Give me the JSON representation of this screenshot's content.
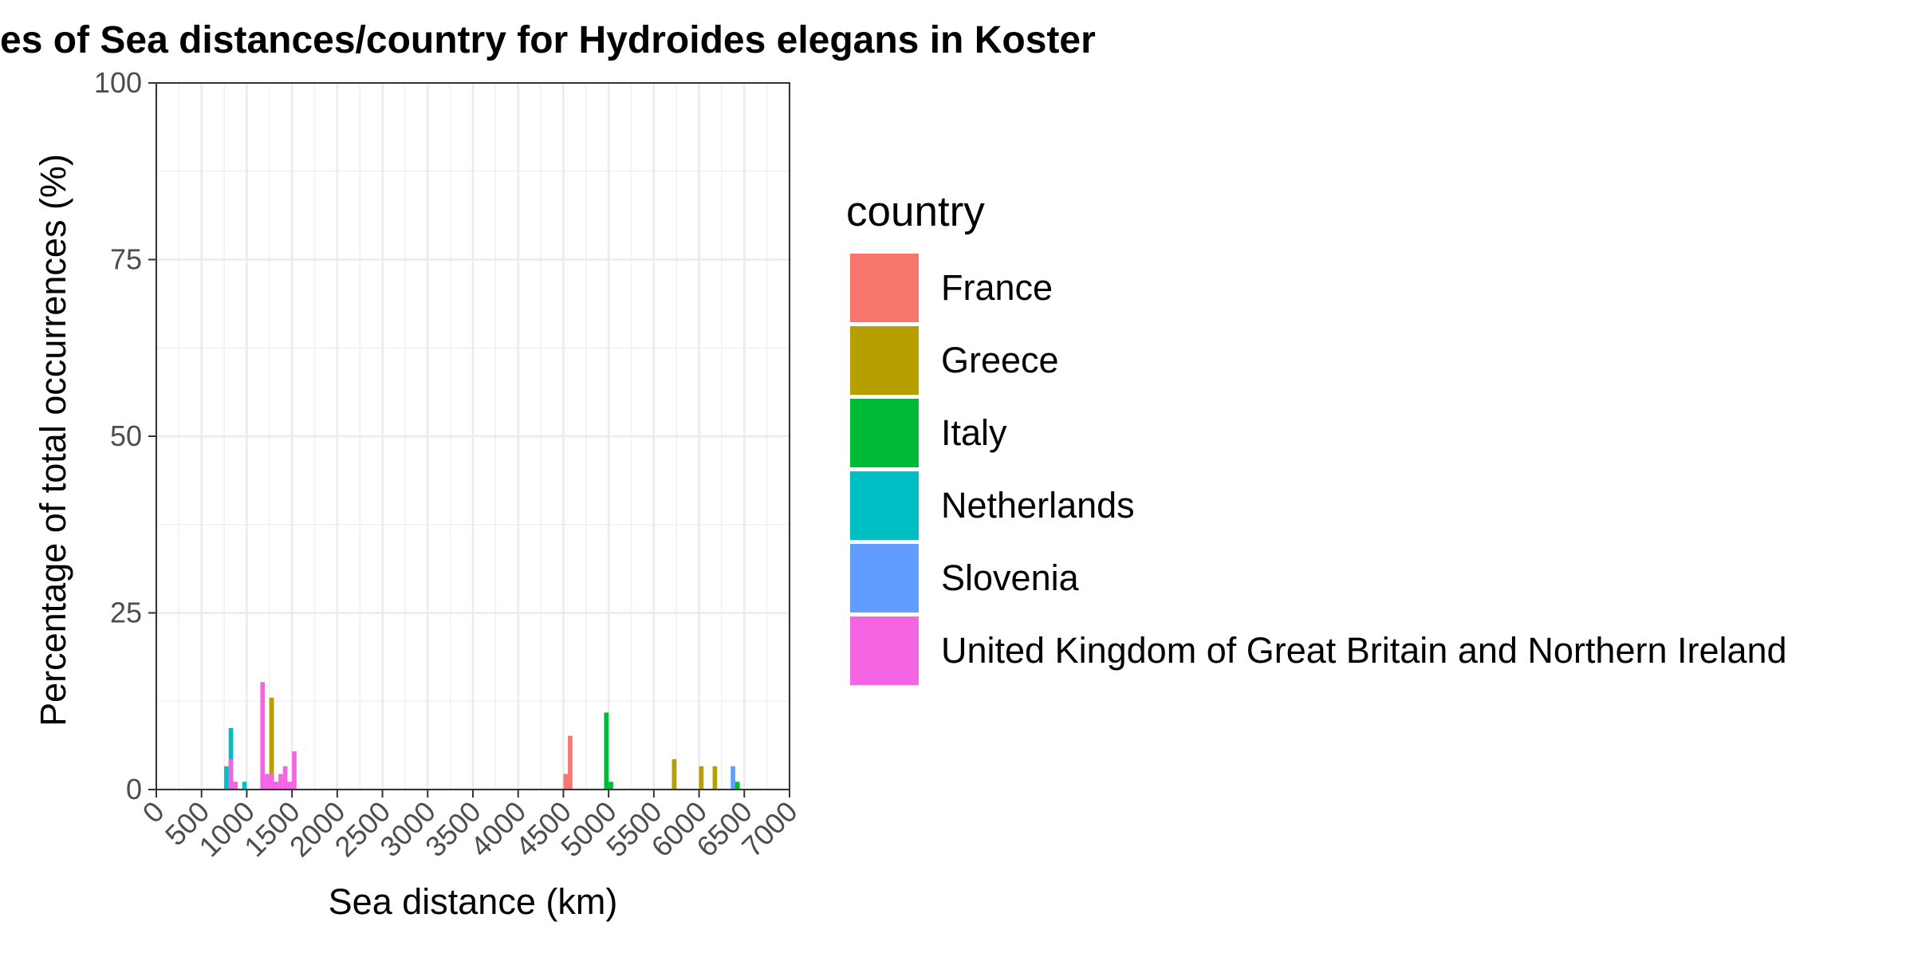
{
  "chart_data": {
    "type": "bar",
    "title": "es of Sea distances/country for Hydroides elegans in Koster",
    "xlabel": "Sea distance (km)",
    "ylabel": "Percentage of total occurrences (%)",
    "xlim": [
      0,
      7000
    ],
    "ylim": [
      0,
      100
    ],
    "x_ticks": [
      "0",
      "500",
      "1000",
      "1500",
      "2000",
      "2500",
      "3000",
      "3500",
      "4000",
      "4500",
      "5000",
      "5500",
      "6000",
      "6500",
      "7000"
    ],
    "y_ticks": [
      "0",
      "25",
      "50",
      "75",
      "100"
    ],
    "grid": true,
    "legend": {
      "title": "country",
      "position": "right",
      "entries": [
        {
          "name": "France",
          "color": "#F8766D"
        },
        {
          "name": "Greece",
          "color": "#B79F00"
        },
        {
          "name": "Italy",
          "color": "#00BA38"
        },
        {
          "name": "Netherlands",
          "color": "#00BFC4"
        },
        {
          "name": "Slovenia",
          "color": "#619CFF"
        },
        {
          "name": "United Kingdom of Great Britain and Northern Ireland",
          "color": "#F564E3"
        }
      ]
    },
    "bin_width_km": 50,
    "series": [
      {
        "name": "France",
        "bins": [
          {
            "x0": 4500,
            "x1": 4550,
            "value": 2.2
          },
          {
            "x0": 4550,
            "x1": 4600,
            "value": 7.6
          }
        ]
      },
      {
        "name": "Greece",
        "bins": [
          {
            "x0": 1250,
            "x1": 1300,
            "value": 13.0
          },
          {
            "x0": 5700,
            "x1": 5750,
            "value": 4.3
          },
          {
            "x0": 6000,
            "x1": 6050,
            "value": 3.3
          },
          {
            "x0": 6150,
            "x1": 6200,
            "value": 3.3
          }
        ]
      },
      {
        "name": "Italy",
        "bins": [
          {
            "x0": 4950,
            "x1": 5000,
            "value": 10.9
          },
          {
            "x0": 5000,
            "x1": 5050,
            "value": 1.1
          },
          {
            "x0": 6400,
            "x1": 6450,
            "value": 1.1
          }
        ]
      },
      {
        "name": "Netherlands",
        "bins": [
          {
            "x0": 750,
            "x1": 800,
            "value": 3.3
          },
          {
            "x0": 800,
            "x1": 850,
            "value": 8.7
          },
          {
            "x0": 950,
            "x1": 1000,
            "value": 1.1
          }
        ]
      },
      {
        "name": "Slovenia",
        "bins": [
          {
            "x0": 6350,
            "x1": 6400,
            "value": 3.3
          }
        ]
      },
      {
        "name": "United Kingdom of Great Britain and Northern Ireland",
        "bins": [
          {
            "x0": 800,
            "x1": 850,
            "value": 4.3
          },
          {
            "x0": 850,
            "x1": 900,
            "value": 1.1
          },
          {
            "x0": 1150,
            "x1": 1200,
            "value": 15.2
          },
          {
            "x0": 1200,
            "x1": 1250,
            "value": 2.2
          },
          {
            "x0": 1250,
            "x1": 1300,
            "value": 2.2
          },
          {
            "x0": 1300,
            "x1": 1350,
            "value": 1.1
          },
          {
            "x0": 1350,
            "x1": 1400,
            "value": 2.2
          },
          {
            "x0": 1400,
            "x1": 1450,
            "value": 3.3
          },
          {
            "x0": 1450,
            "x1": 1500,
            "value": 1.1
          },
          {
            "x0": 1500,
            "x1": 1550,
            "value": 5.4
          }
        ]
      }
    ]
  }
}
